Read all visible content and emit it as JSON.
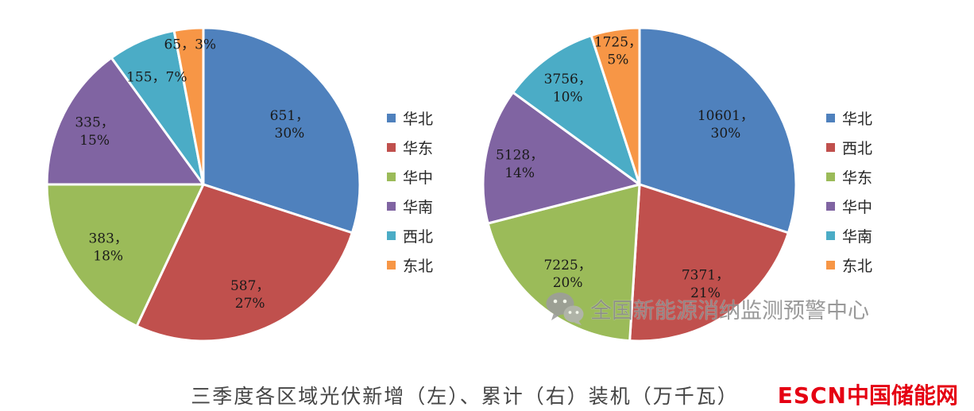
{
  "page": {
    "caption": "三季度各区域光伏新增（左）、累计（右）装机（万千瓦）",
    "watermark_text": "全国新能源消纳监测预警中心",
    "brand": {
      "name": "ESCN",
      "suffix": "中国储能网",
      "color": "#e50012"
    }
  },
  "chart_data": [
    {
      "type": "pie",
      "name": "quarterly-new-pv-installed-capacity-left",
      "unit": "万千瓦",
      "legend_position": "right",
      "start_angle_deg": 0,
      "direction": "clockwise",
      "slices": [
        {
          "label": "华北",
          "value": 651,
          "percent": 30,
          "color": "#4F81BD",
          "text_lines": [
            "651，",
            "30%"
          ],
          "label_r": 0.68
        },
        {
          "label": "华东",
          "value": 587,
          "percent": 27,
          "color": "#C0504D",
          "text_lines": [
            "587，",
            "27%"
          ],
          "label_r": 0.75
        },
        {
          "label": "华中",
          "value": 383,
          "percent": 18,
          "color": "#9BBB59",
          "text_lines": [
            "383，",
            "18%"
          ],
          "label_r": 0.72
        },
        {
          "label": "华南",
          "value": 335,
          "percent": 15,
          "color": "#8064A2",
          "text_lines": [
            "335，",
            "15%"
          ],
          "label_r": 0.78
        },
        {
          "label": "西北",
          "value": 155,
          "percent": 7,
          "color": "#4BACC6",
          "text_lines": [
            "155，7%"
          ],
          "label_r": 0.75
        },
        {
          "label": "东北",
          "value": 65,
          "percent": 3,
          "color": "#F79646",
          "text_lines": [
            "65，3%"
          ],
          "label_r": 0.9
        }
      ]
    },
    {
      "type": "pie",
      "name": "quarterly-cumulative-pv-installed-capacity-right",
      "unit": "万千瓦",
      "legend_position": "right",
      "start_angle_deg": 0,
      "direction": "clockwise",
      "slices": [
        {
          "label": "华北",
          "value": 10601,
          "percent": 30,
          "color": "#4F81BD",
          "text_lines": [
            "10601，",
            "30%"
          ],
          "label_r": 0.68
        },
        {
          "label": "西北",
          "value": 7371,
          "percent": 21,
          "color": "#C0504D",
          "text_lines": [
            "7371，",
            "21%"
          ],
          "label_r": 0.75
        },
        {
          "label": "华东",
          "value": 7225,
          "percent": 20,
          "color": "#9BBB59",
          "text_lines": [
            "7225，",
            "20%"
          ],
          "label_r": 0.72
        },
        {
          "label": "华中",
          "value": 5128,
          "percent": 14,
          "color": "#8064A2",
          "text_lines": [
            "5128，",
            "14%"
          ],
          "label_r": 0.78
        },
        {
          "label": "华南",
          "value": 3756,
          "percent": 10,
          "color": "#4BACC6",
          "text_lines": [
            "3756，",
            "10%"
          ],
          "label_r": 0.78
        },
        {
          "label": "东北",
          "value": 1725,
          "percent": 5,
          "color": "#F79646",
          "text_lines": [
            "1725，",
            "5%"
          ],
          "label_r": 0.88
        }
      ]
    }
  ]
}
